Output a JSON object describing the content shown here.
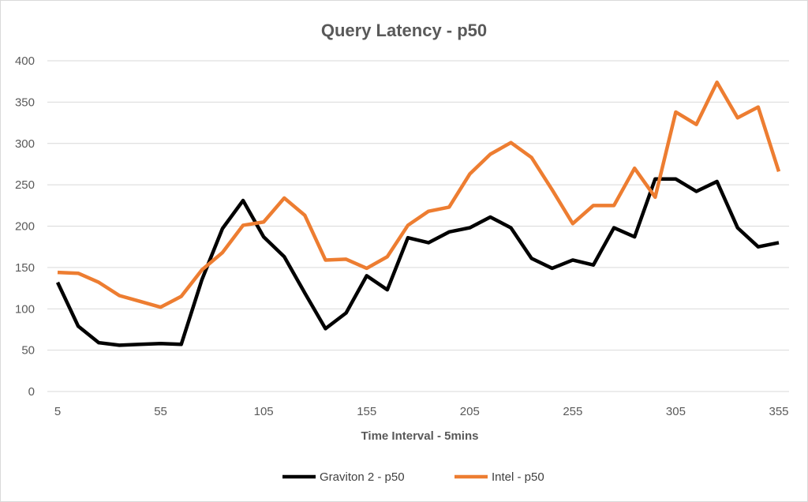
{
  "chart_data": {
    "type": "line",
    "title": "Query Latency - p50",
    "xlabel": "Time Interval - 5mins",
    "ylabel": "",
    "x": [
      5,
      15,
      25,
      35,
      45,
      55,
      65,
      75,
      85,
      95,
      105,
      115,
      125,
      135,
      145,
      155,
      165,
      175,
      185,
      195,
      205,
      215,
      225,
      235,
      245,
      255,
      265,
      275,
      285,
      295,
      305,
      315,
      325,
      335,
      345,
      355
    ],
    "x_tick_labels": [
      "5",
      "55",
      "105",
      "155",
      "205",
      "255",
      "305",
      "355"
    ],
    "y_tick_labels": [
      "0",
      "50",
      "100",
      "150",
      "200",
      "250",
      "300",
      "350",
      "400"
    ],
    "ylim": [
      0,
      400
    ],
    "grid": true,
    "legend_position": "bottom",
    "series": [
      {
        "name": "Graviton 2 - p50",
        "color": "#000000",
        "values": [
          132,
          79,
          59,
          56,
          57,
          58,
          57,
          135,
          197,
          231,
          187,
          163,
          119,
          76,
          95,
          140,
          123,
          186,
          180,
          193,
          198,
          211,
          198,
          161,
          149,
          159,
          153,
          198,
          187,
          257,
          257,
          242,
          254,
          198,
          175,
          180
        ]
      },
      {
        "name": "Intel - p50",
        "color": "#ED7D31",
        "values": [
          144,
          143,
          132,
          116,
          109,
          102,
          115,
          147,
          168,
          201,
          205,
          234,
          213,
          159,
          160,
          149,
          163,
          201,
          218,
          223,
          263,
          287,
          301,
          283,
          244,
          203,
          225,
          225,
          270,
          235,
          338,
          323,
          374,
          331,
          344,
          266
        ]
      }
    ]
  }
}
